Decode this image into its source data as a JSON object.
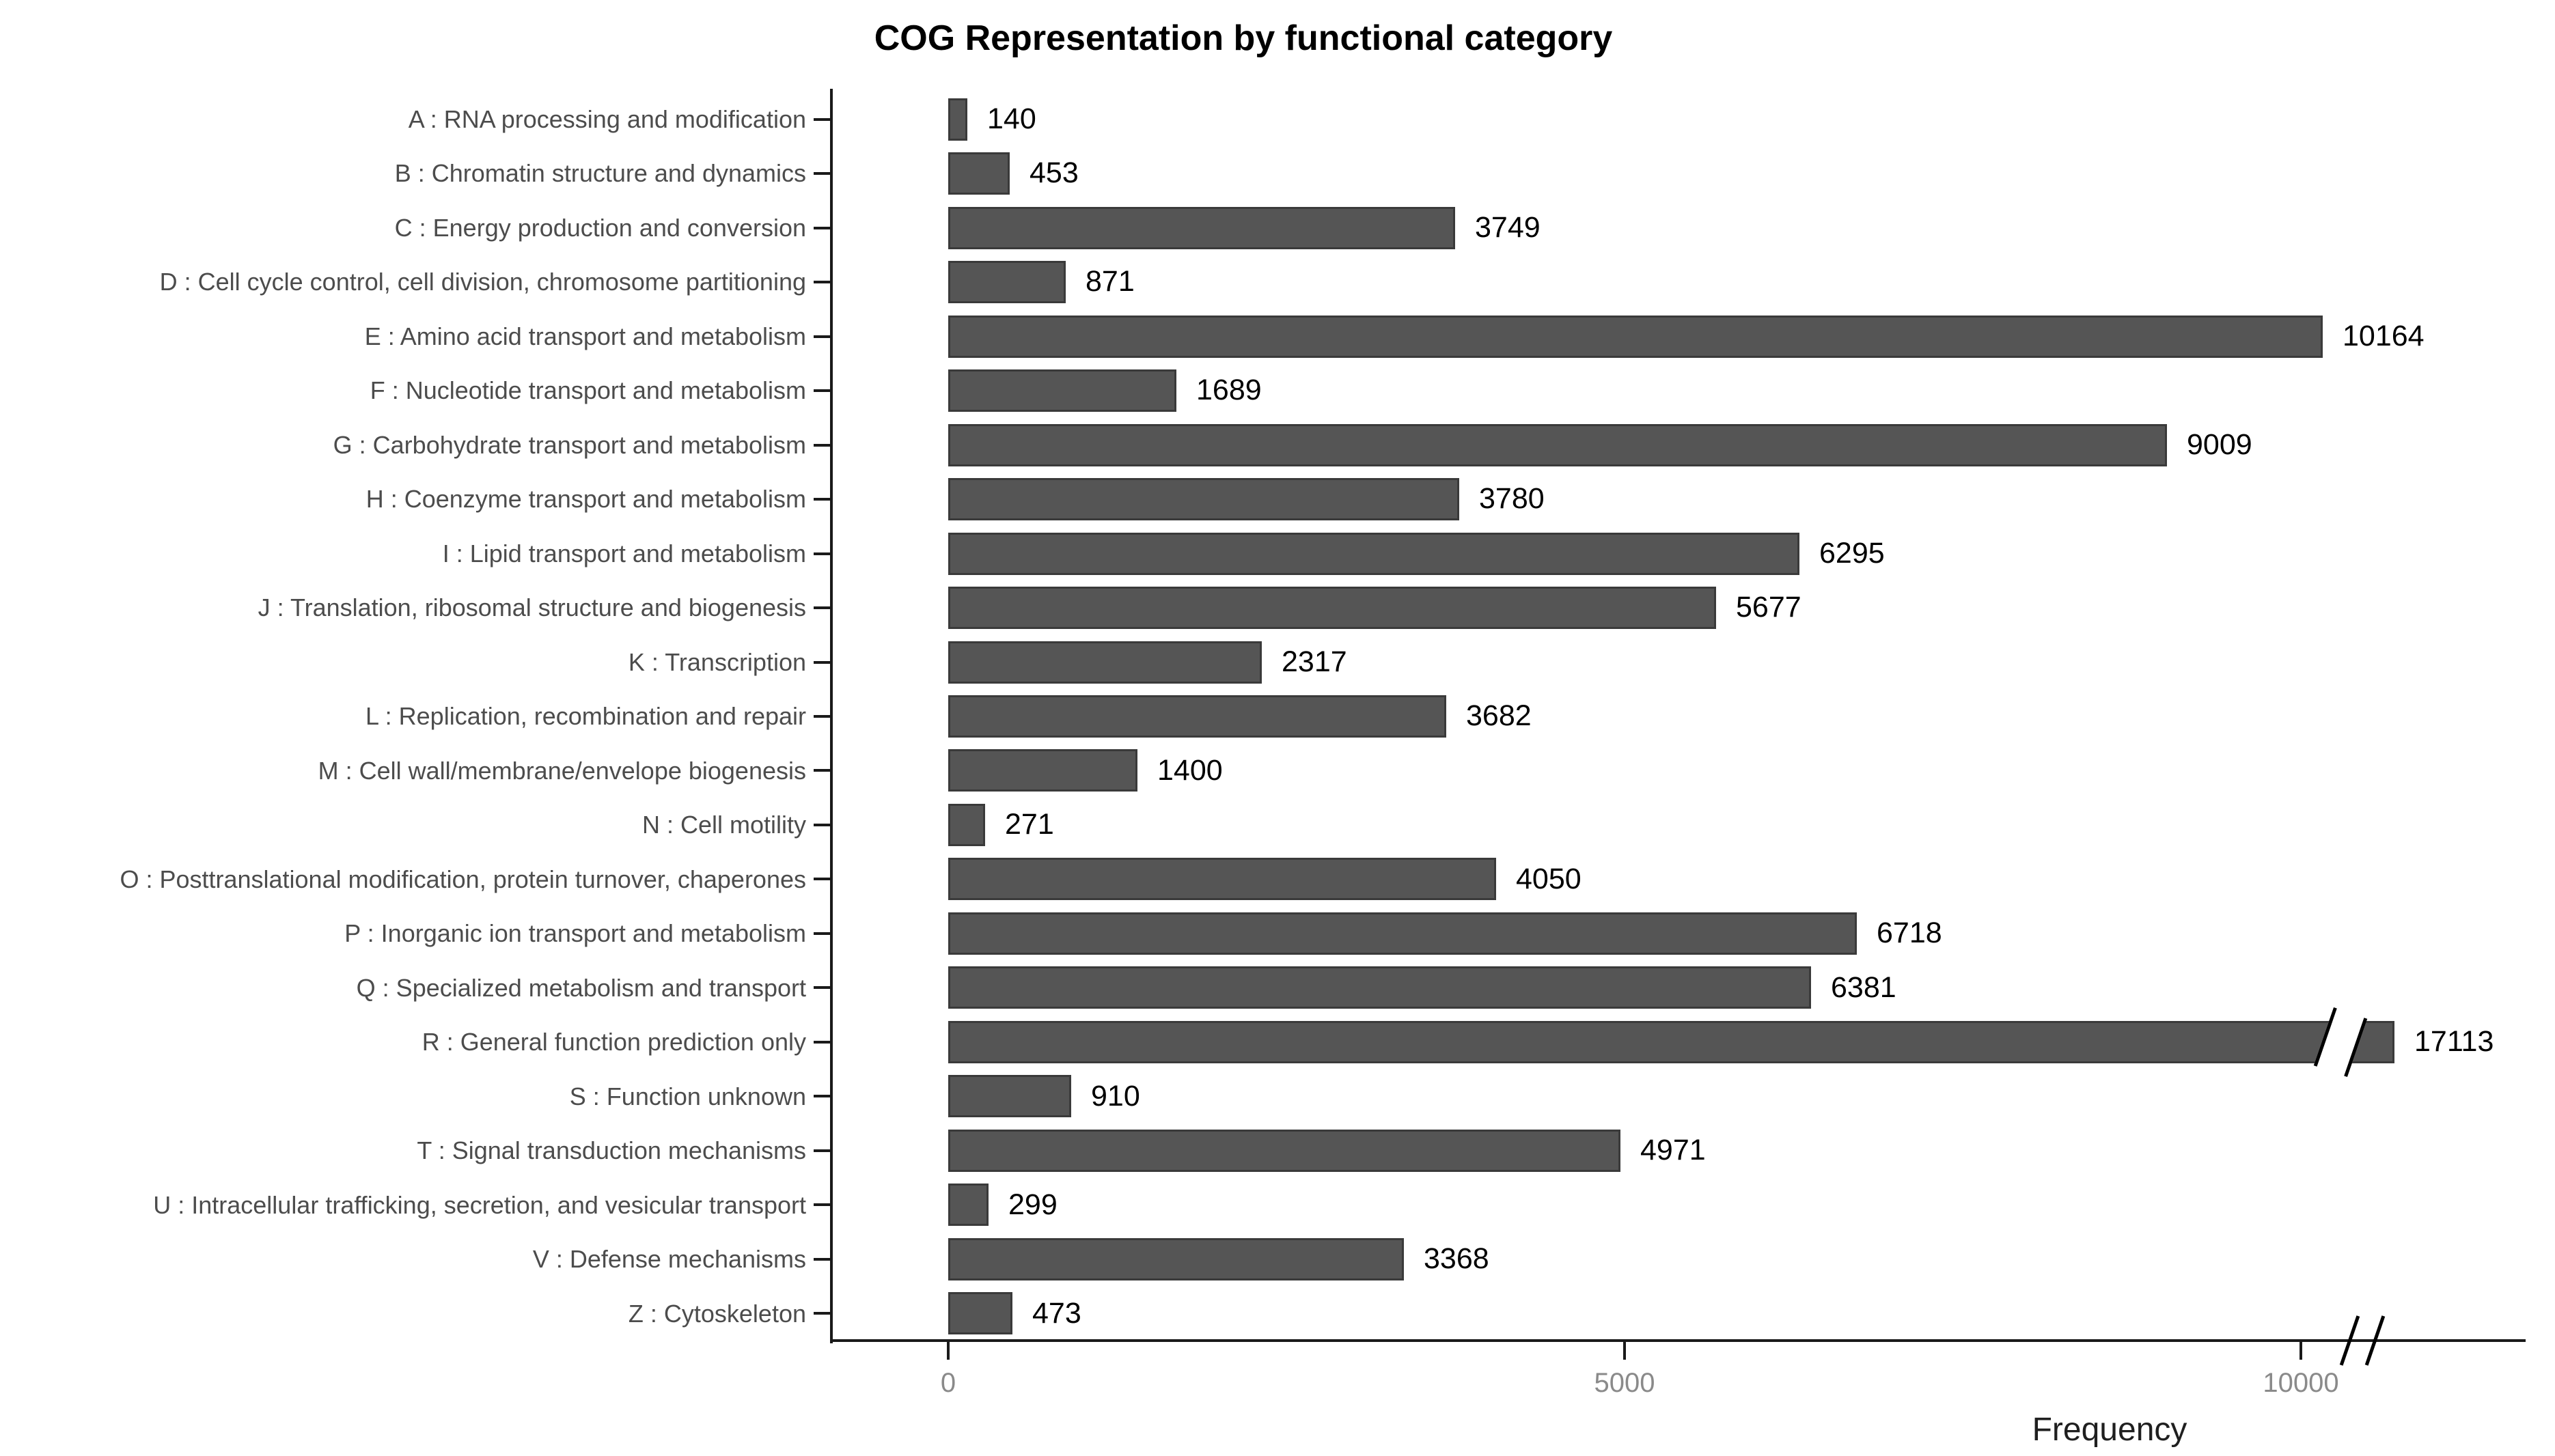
{
  "chart_data": {
    "type": "bar",
    "orientation": "horizontal",
    "title": "COG Representation by functional category",
    "xlabel": "Frequency",
    "ylabel": "",
    "x_ticks": [
      0,
      5000,
      10000
    ],
    "x_tick_labels": [
      "0",
      "5000",
      "10000"
    ],
    "xlim_visible": [
      0,
      11700
    ],
    "grid": false,
    "legend": "none",
    "bar_color": "#555555",
    "bar_border_color": "#3a3a3a",
    "axis_break": {
      "present": true,
      "symbol": "//",
      "location": "x-axis right end after 10000 tick, and across bar R",
      "truncated_category": "R : General function prediction only",
      "truncated_value": 17113
    },
    "categories": [
      "A : RNA processing and modification",
      "B : Chromatin structure and dynamics",
      "C : Energy production and conversion",
      "D : Cell cycle control, cell division, chromosome partitioning",
      "E : Amino acid transport and metabolism",
      "F : Nucleotide transport and metabolism",
      "G : Carbohydrate transport and metabolism",
      "H : Coenzyme transport and metabolism",
      "I : Lipid transport and metabolism",
      "J : Translation, ribosomal structure and biogenesis",
      "K : Transcription",
      "L : Replication, recombination and repair",
      "M : Cell wall/membrane/envelope biogenesis",
      "N : Cell motility",
      "O : Posttranslational modification, protein turnover, chaperones",
      "P : Inorganic ion transport and metabolism",
      "Q : Specialized metabolism and transport",
      "R : General function prediction only",
      "S : Function unknown",
      "T : Signal transduction mechanisms",
      "U : Intracellular trafficking, secretion, and vesicular transport",
      "V : Defense mechanisms",
      "Z : Cytoskeleton"
    ],
    "values": [
      140,
      453,
      3749,
      871,
      10164,
      1689,
      9009,
      3780,
      6295,
      5677,
      2317,
      3682,
      1400,
      271,
      4050,
      6718,
      6381,
      17113,
      910,
      4971,
      299,
      3368,
      473
    ]
  },
  "colors": {
    "background": "#ffffff",
    "axis": "#1a1a1a",
    "category_label": "#4c4c4c",
    "value_label": "#000000",
    "tick_label": "#8a8a8a",
    "title": "#000000"
  }
}
